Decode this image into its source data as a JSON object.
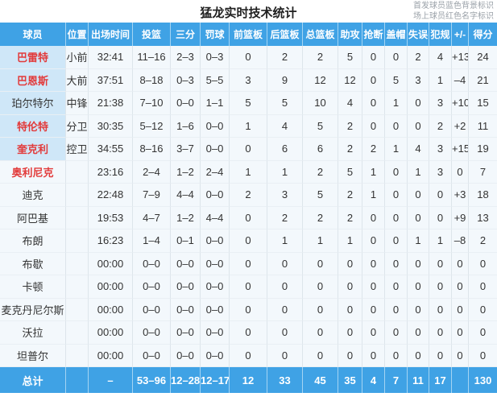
{
  "page": {
    "title": "猛龙实时技术统计",
    "legend": {
      "line1": "首发球员蓝色背景标识",
      "line2": "场上球员红色名字标识"
    }
  },
  "colors": {
    "header_blue": "#3fa2e5",
    "starter_cell_blue": "#cfe7f8",
    "oncourt_red": "#e23b3b",
    "row_bg": "#f3f8fc",
    "note_gray": "#9aa1a8"
  },
  "table": {
    "columns": [
      "球员",
      "位置",
      "出场时间",
      "投篮",
      "三分",
      "罚球",
      "前篮板",
      "后篮板",
      "总篮板",
      "助攻",
      "抢断",
      "盖帽",
      "失误",
      "犯规",
      "+/-",
      "得分"
    ],
    "stat_keys": [
      "position",
      "minutes",
      "fg",
      "three",
      "ft",
      "oreb",
      "dreb",
      "treb",
      "ast",
      "stl",
      "blk",
      "tov",
      "pf",
      "plus_minus",
      "pts"
    ],
    "rows": [
      {
        "name": "巴雷特",
        "starter": true,
        "on_court": true,
        "position": "小前",
        "minutes": "32:41",
        "fg": "11–16",
        "three": "2–3",
        "ft": "0–3",
        "oreb": "0",
        "dreb": "2",
        "treb": "2",
        "ast": "5",
        "stl": "0",
        "blk": "0",
        "tov": "2",
        "pf": "4",
        "plus_minus": "+13",
        "pts": "24"
      },
      {
        "name": "巴恩斯",
        "starter": true,
        "on_court": true,
        "position": "大前",
        "minutes": "37:51",
        "fg": "8–18",
        "three": "0–3",
        "ft": "5–5",
        "oreb": "3",
        "dreb": "9",
        "treb": "12",
        "ast": "12",
        "stl": "0",
        "blk": "5",
        "tov": "3",
        "pf": "1",
        "plus_minus": "–4",
        "pts": "21"
      },
      {
        "name": "珀尔特尔",
        "starter": true,
        "on_court": false,
        "position": "中锋",
        "minutes": "21:38",
        "fg": "7–10",
        "three": "0–0",
        "ft": "1–1",
        "oreb": "5",
        "dreb": "5",
        "treb": "10",
        "ast": "4",
        "stl": "0",
        "blk": "1",
        "tov": "0",
        "pf": "3",
        "plus_minus": "+10",
        "pts": "15"
      },
      {
        "name": "特伦特",
        "starter": true,
        "on_court": true,
        "position": "分卫",
        "minutes": "30:35",
        "fg": "5–12",
        "three": "1–6",
        "ft": "0–0",
        "oreb": "1",
        "dreb": "4",
        "treb": "5",
        "ast": "2",
        "stl": "0",
        "blk": "0",
        "tov": "0",
        "pf": "2",
        "plus_minus": "+2",
        "pts": "11"
      },
      {
        "name": "奎克利",
        "starter": true,
        "on_court": true,
        "position": "控卫",
        "minutes": "34:55",
        "fg": "8–16",
        "three": "3–7",
        "ft": "0–0",
        "oreb": "0",
        "dreb": "6",
        "treb": "6",
        "ast": "2",
        "stl": "2",
        "blk": "1",
        "tov": "4",
        "pf": "3",
        "plus_minus": "+15",
        "pts": "19"
      },
      {
        "name": "奥利尼克",
        "starter": false,
        "on_court": true,
        "position": "",
        "minutes": "23:16",
        "fg": "2–4",
        "three": "1–2",
        "ft": "2–4",
        "oreb": "1",
        "dreb": "1",
        "treb": "2",
        "ast": "5",
        "stl": "1",
        "blk": "0",
        "tov": "1",
        "pf": "3",
        "plus_minus": "0",
        "pts": "7"
      },
      {
        "name": "迪克",
        "starter": false,
        "on_court": false,
        "position": "",
        "minutes": "22:48",
        "fg": "7–9",
        "three": "4–4",
        "ft": "0–0",
        "oreb": "2",
        "dreb": "3",
        "treb": "5",
        "ast": "2",
        "stl": "1",
        "blk": "0",
        "tov": "0",
        "pf": "0",
        "plus_minus": "+3",
        "pts": "18"
      },
      {
        "name": "阿巴基",
        "starter": false,
        "on_court": false,
        "position": "",
        "minutes": "19:53",
        "fg": "4–7",
        "three": "1–2",
        "ft": "4–4",
        "oreb": "0",
        "dreb": "2",
        "treb": "2",
        "ast": "2",
        "stl": "0",
        "blk": "0",
        "tov": "0",
        "pf": "0",
        "plus_minus": "+9",
        "pts": "13"
      },
      {
        "name": "布朗",
        "starter": false,
        "on_court": false,
        "position": "",
        "minutes": "16:23",
        "fg": "1–4",
        "three": "0–1",
        "ft": "0–0",
        "oreb": "0",
        "dreb": "1",
        "treb": "1",
        "ast": "1",
        "stl": "0",
        "blk": "0",
        "tov": "1",
        "pf": "1",
        "plus_minus": "–8",
        "pts": "2"
      },
      {
        "name": "布歇",
        "starter": false,
        "on_court": false,
        "position": "",
        "minutes": "00:00",
        "fg": "0–0",
        "three": "0–0",
        "ft": "0–0",
        "oreb": "0",
        "dreb": "0",
        "treb": "0",
        "ast": "0",
        "stl": "0",
        "blk": "0",
        "tov": "0",
        "pf": "0",
        "plus_minus": "0",
        "pts": "0"
      },
      {
        "name": "卡顿",
        "starter": false,
        "on_court": false,
        "position": "",
        "minutes": "00:00",
        "fg": "0–0",
        "three": "0–0",
        "ft": "0–0",
        "oreb": "0",
        "dreb": "0",
        "treb": "0",
        "ast": "0",
        "stl": "0",
        "blk": "0",
        "tov": "0",
        "pf": "0",
        "plus_minus": "0",
        "pts": "0"
      },
      {
        "name": "麦克丹尼尔斯",
        "starter": false,
        "on_court": false,
        "position": "",
        "minutes": "00:00",
        "fg": "0–0",
        "three": "0–0",
        "ft": "0–0",
        "oreb": "0",
        "dreb": "0",
        "treb": "0",
        "ast": "0",
        "stl": "0",
        "blk": "0",
        "tov": "0",
        "pf": "0",
        "plus_minus": "0",
        "pts": "0"
      },
      {
        "name": "沃拉",
        "starter": false,
        "on_court": false,
        "position": "",
        "minutes": "00:00",
        "fg": "0–0",
        "three": "0–0",
        "ft": "0–0",
        "oreb": "0",
        "dreb": "0",
        "treb": "0",
        "ast": "0",
        "stl": "0",
        "blk": "0",
        "tov": "0",
        "pf": "0",
        "plus_minus": "0",
        "pts": "0"
      },
      {
        "name": "坦普尔",
        "starter": false,
        "on_court": false,
        "position": "",
        "minutes": "00:00",
        "fg": "0–0",
        "three": "0–0",
        "ft": "0–0",
        "oreb": "0",
        "dreb": "0",
        "treb": "0",
        "ast": "0",
        "stl": "0",
        "blk": "0",
        "tov": "0",
        "pf": "0",
        "plus_minus": "0",
        "pts": "0"
      }
    ],
    "total": {
      "name": "总计",
      "position": "",
      "minutes": "–",
      "fg": "53–96",
      "three": "12–28",
      "ft": "12–17",
      "oreb": "12",
      "dreb": "33",
      "treb": "45",
      "ast": "35",
      "stl": "4",
      "blk": "7",
      "tov": "11",
      "pf": "17",
      "plus_minus": "",
      "pts": "130"
    }
  }
}
